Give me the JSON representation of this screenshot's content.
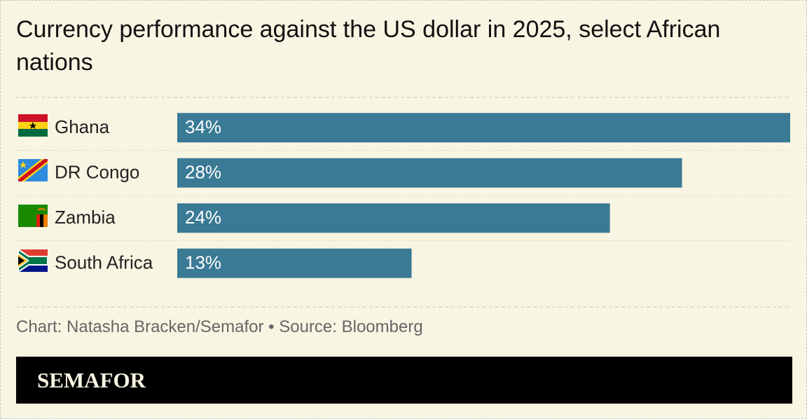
{
  "chart_data": {
    "type": "bar",
    "orientation": "horizontal",
    "title": "Currency performance against the US dollar in 2025, select African nations",
    "categories": [
      "Ghana",
      "DR Congo",
      "Zambia",
      "South Africa"
    ],
    "values": [
      34,
      28,
      24,
      13
    ],
    "value_labels": [
      "34%",
      "28%",
      "24%",
      "13%"
    ],
    "color": "#3a7a94",
    "source": "Chart: Natasha Bracken/Semafor • Source: Bloomberg",
    "logo": "SEMAFOR"
  }
}
